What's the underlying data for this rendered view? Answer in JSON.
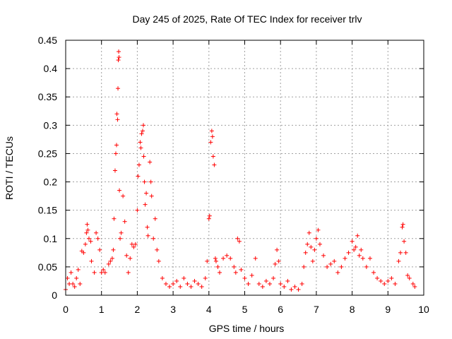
{
  "chart_data": {
    "type": "scatter",
    "title": "Day 245 of 2025, Rate Of TEC Index for receiver trlv",
    "xlabel": "GPS time / hours",
    "ylabel": "ROTI / TECUs",
    "xlim": [
      0,
      10
    ],
    "ylim": [
      0,
      0.45
    ],
    "xticks": [
      "0",
      "1",
      "2",
      "3",
      "4",
      "5",
      "6",
      "7",
      "8",
      "9",
      "10"
    ],
    "yticks": [
      "0",
      "0.05",
      "0.1",
      "0.15",
      "0.2",
      "0.25",
      "0.3",
      "0.35",
      "0.4",
      "0.45"
    ],
    "grid": true,
    "marker": "+",
    "color": "#ff0000",
    "series": [
      {
        "name": "ROTI",
        "points": [
          [
            0.0,
            0.01
          ],
          [
            0.05,
            0.03
          ],
          [
            0.1,
            0.02
          ],
          [
            0.15,
            0.04
          ],
          [
            0.2,
            0.02
          ],
          [
            0.25,
            0.015
          ],
          [
            0.3,
            0.03
          ],
          [
            0.35,
            0.045
          ],
          [
            0.4,
            0.02
          ],
          [
            0.45,
            0.078
          ],
          [
            0.5,
            0.075
          ],
          [
            0.55,
            0.09
          ],
          [
            0.58,
            0.11
          ],
          [
            0.6,
            0.125
          ],
          [
            0.62,
            0.115
          ],
          [
            0.65,
            0.1
          ],
          [
            0.7,
            0.095
          ],
          [
            0.72,
            0.06
          ],
          [
            0.8,
            0.04
          ],
          [
            0.85,
            0.11
          ],
          [
            0.9,
            0.1
          ],
          [
            0.95,
            0.08
          ],
          [
            1.0,
            0.04
          ],
          [
            1.05,
            0.045
          ],
          [
            1.1,
            0.04
          ],
          [
            1.2,
            0.055
          ],
          [
            1.25,
            0.06
          ],
          [
            1.3,
            0.065
          ],
          [
            1.33,
            0.08
          ],
          [
            1.35,
            0.135
          ],
          [
            1.38,
            0.22
          ],
          [
            1.4,
            0.25
          ],
          [
            1.42,
            0.265
          ],
          [
            1.43,
            0.32
          ],
          [
            1.45,
            0.31
          ],
          [
            1.46,
            0.365
          ],
          [
            1.47,
            0.415
          ],
          [
            1.48,
            0.43
          ],
          [
            1.49,
            0.42
          ],
          [
            1.5,
            0.185
          ],
          [
            1.52,
            0.1
          ],
          [
            1.55,
            0.11
          ],
          [
            1.6,
            0.175
          ],
          [
            1.65,
            0.13
          ],
          [
            1.7,
            0.07
          ],
          [
            1.75,
            0.04
          ],
          [
            1.8,
            0.065
          ],
          [
            1.85,
            0.09
          ],
          [
            1.9,
            0.085
          ],
          [
            1.95,
            0.09
          ],
          [
            2.0,
            0.15
          ],
          [
            2.02,
            0.21
          ],
          [
            2.05,
            0.23
          ],
          [
            2.08,
            0.27
          ],
          [
            2.1,
            0.26
          ],
          [
            2.12,
            0.285
          ],
          [
            2.15,
            0.29
          ],
          [
            2.17,
            0.3
          ],
          [
            2.18,
            0.245
          ],
          [
            2.2,
            0.2
          ],
          [
            2.22,
            0.16
          ],
          [
            2.25,
            0.18
          ],
          [
            2.28,
            0.12
          ],
          [
            2.3,
            0.105
          ],
          [
            2.35,
            0.235
          ],
          [
            2.38,
            0.2
          ],
          [
            2.4,
            0.175
          ],
          [
            2.45,
            0.1
          ],
          [
            2.5,
            0.135
          ],
          [
            2.55,
            0.08
          ],
          [
            2.6,
            0.06
          ],
          [
            2.7,
            0.03
          ],
          [
            2.8,
            0.02
          ],
          [
            2.9,
            0.015
          ],
          [
            3.0,
            0.02
          ],
          [
            3.1,
            0.025
          ],
          [
            3.2,
            0.015
          ],
          [
            3.3,
            0.03
          ],
          [
            3.4,
            0.02
          ],
          [
            3.5,
            0.015
          ],
          [
            3.6,
            0.025
          ],
          [
            3.7,
            0.02
          ],
          [
            3.8,
            0.015
          ],
          [
            3.9,
            0.03
          ],
          [
            3.95,
            0.06
          ],
          [
            4.0,
            0.135
          ],
          [
            4.02,
            0.14
          ],
          [
            4.05,
            0.27
          ],
          [
            4.08,
            0.29
          ],
          [
            4.1,
            0.28
          ],
          [
            4.12,
            0.245
          ],
          [
            4.15,
            0.23
          ],
          [
            4.18,
            0.065
          ],
          [
            4.2,
            0.06
          ],
          [
            4.25,
            0.05
          ],
          [
            4.3,
            0.04
          ],
          [
            4.4,
            0.065
          ],
          [
            4.5,
            0.07
          ],
          [
            4.6,
            0.065
          ],
          [
            4.7,
            0.05
          ],
          [
            4.75,
            0.04
          ],
          [
            4.8,
            0.1
          ],
          [
            4.85,
            0.095
          ],
          [
            4.9,
            0.045
          ],
          [
            5.0,
            0.03
          ],
          [
            5.1,
            0.02
          ],
          [
            5.2,
            0.035
          ],
          [
            5.3,
            0.065
          ],
          [
            5.4,
            0.02
          ],
          [
            5.5,
            0.015
          ],
          [
            5.6,
            0.025
          ],
          [
            5.7,
            0.02
          ],
          [
            5.8,
            0.03
          ],
          [
            5.85,
            0.055
          ],
          [
            5.9,
            0.08
          ],
          [
            5.95,
            0.06
          ],
          [
            6.0,
            0.02
          ],
          [
            6.1,
            0.015
          ],
          [
            6.2,
            0.025
          ],
          [
            6.3,
            0.01
          ],
          [
            6.4,
            0.015
          ],
          [
            6.5,
            0.01
          ],
          [
            6.6,
            0.02
          ],
          [
            6.65,
            0.05
          ],
          [
            6.7,
            0.075
          ],
          [
            6.75,
            0.09
          ],
          [
            6.8,
            0.11
          ],
          [
            6.85,
            0.085
          ],
          [
            6.9,
            0.06
          ],
          [
            6.95,
            0.08
          ],
          [
            7.0,
            0.1
          ],
          [
            7.05,
            0.115
          ],
          [
            7.1,
            0.09
          ],
          [
            7.2,
            0.07
          ],
          [
            7.3,
            0.05
          ],
          [
            7.4,
            0.055
          ],
          [
            7.5,
            0.06
          ],
          [
            7.6,
            0.04
          ],
          [
            7.7,
            0.05
          ],
          [
            7.8,
            0.065
          ],
          [
            7.9,
            0.075
          ],
          [
            8.0,
            0.095
          ],
          [
            8.05,
            0.08
          ],
          [
            8.1,
            0.085
          ],
          [
            8.15,
            0.105
          ],
          [
            8.2,
            0.07
          ],
          [
            8.25,
            0.08
          ],
          [
            8.3,
            0.065
          ],
          [
            8.4,
            0.05
          ],
          [
            8.5,
            0.065
          ],
          [
            8.6,
            0.04
          ],
          [
            8.7,
            0.03
          ],
          [
            8.8,
            0.025
          ],
          [
            8.9,
            0.02
          ],
          [
            9.0,
            0.025
          ],
          [
            9.1,
            0.03
          ],
          [
            9.2,
            0.02
          ],
          [
            9.3,
            0.06
          ],
          [
            9.35,
            0.075
          ],
          [
            9.4,
            0.12
          ],
          [
            9.42,
            0.125
          ],
          [
            9.45,
            0.095
          ],
          [
            9.5,
            0.075
          ],
          [
            9.55,
            0.035
          ],
          [
            9.6,
            0.03
          ],
          [
            9.7,
            0.02
          ],
          [
            9.75,
            0.015
          ]
        ]
      }
    ]
  }
}
